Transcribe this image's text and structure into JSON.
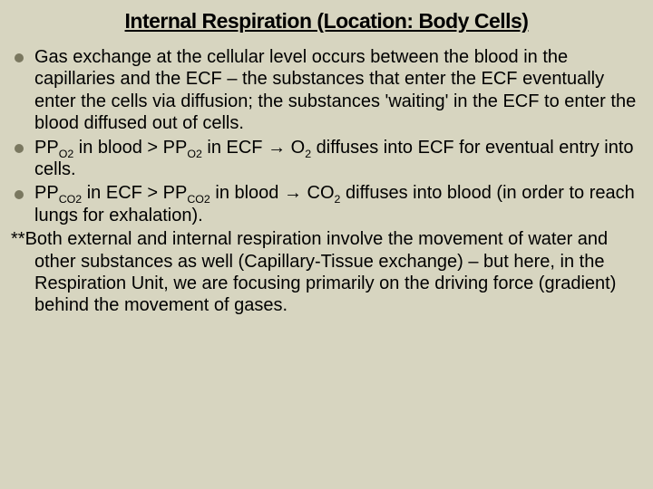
{
  "slide": {
    "title": "Internal Respiration (Location: Body Cells)",
    "background_color": "#d7d5c0",
    "text_color": "#000000",
    "bullet_color": "#7a7860",
    "title_fontsize": 23,
    "body_fontsize": 20,
    "font_family": "Verdana",
    "bullets": [
      {
        "text": "Gas exchange at the cellular level occurs between the blood in the capillaries and the ECF – the substances that enter the ECF eventually enter the cells via diffusion; the substances 'waiting' in the ECF to enter the blood diffused out of cells."
      },
      {
        "segments": [
          {
            "t": "PP"
          },
          {
            "t": "O2",
            "sub": true
          },
          {
            "t": " in blood > PP"
          },
          {
            "t": "O2",
            "sub": true
          },
          {
            "t": " in ECF "
          },
          {
            "t": "→",
            "arrow": true
          },
          {
            "t": " O"
          },
          {
            "t": "2",
            "sub": true
          },
          {
            "t": " diffuses into ECF for eventual entry into cells."
          }
        ]
      },
      {
        "segments": [
          {
            "t": "PP"
          },
          {
            "t": "CO2",
            "sub": true
          },
          {
            "t": " in ECF > PP"
          },
          {
            "t": "CO2",
            "sub": true
          },
          {
            "t": " in blood "
          },
          {
            "t": "→",
            "arrow": true
          },
          {
            "t": " CO"
          },
          {
            "t": "2",
            "sub": true
          },
          {
            "t": " diffuses into blood (in order to reach lungs for exhalation)."
          }
        ]
      }
    ],
    "note_prefix": "**",
    "note_body": "Both external and internal respiration involve the movement of water and other substances as well (Capillary-Tissue exchange) – but here, in the Respiration Unit, we are focusing primarily on the driving force (gradient) behind the movement of gases."
  }
}
